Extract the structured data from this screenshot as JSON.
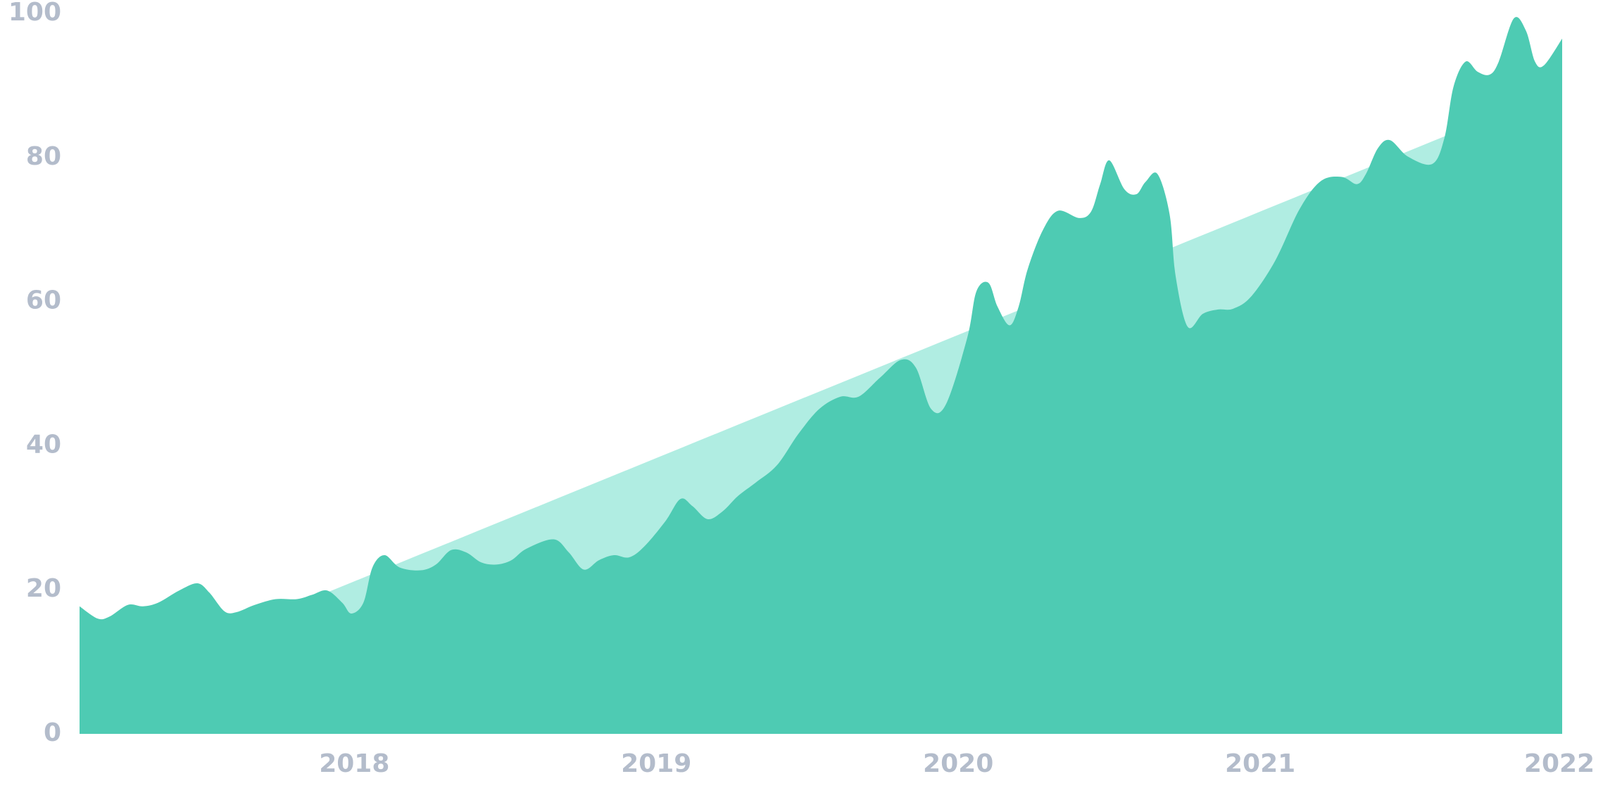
{
  "chart_data": {
    "type": "area",
    "xlim": [
      2017.09,
      2022
    ],
    "xticks": [
      2018,
      2019,
      2020,
      2021,
      2022
    ],
    "ylim": [
      0,
      100
    ],
    "yticks": [
      0,
      20,
      40,
      60,
      80,
      100
    ],
    "series": [
      {
        "color": "#b0ede2",
        "x": [
          2017.09,
          2022
        ],
        "values": [
          5.6,
          89.6
        ]
      },
      {
        "color": "#4ecbb3",
        "x": [
          2017.09,
          2017.15,
          2017.19,
          2017.25,
          2017.3,
          2017.35,
          2017.42,
          2017.48,
          2017.52,
          2017.57,
          2017.61,
          2017.67,
          2017.74,
          2017.81,
          2017.86,
          2017.91,
          2017.96,
          2017.99,
          2018.03,
          2018.06,
          2018.1,
          2018.15,
          2018.22,
          2018.27,
          2018.32,
          2018.37,
          2018.42,
          2018.47,
          2018.52,
          2018.57,
          2018.66,
          2018.71,
          2018.76,
          2018.81,
          2018.86,
          2018.91,
          2018.96,
          2019.03,
          2019.08,
          2019.12,
          2019.17,
          2019.22,
          2019.27,
          2019.33,
          2019.4,
          2019.47,
          2019.54,
          2019.61,
          2019.67,
          2019.74,
          2019.81,
          2019.86,
          2019.91,
          2019.96,
          2020.03,
          2020.06,
          2020.1,
          2020.13,
          2020.17,
          2020.2,
          2020.23,
          2020.28,
          2020.33,
          2020.4,
          2020.44,
          2020.47,
          2020.5,
          2020.55,
          2020.59,
          2020.62,
          2020.66,
          2020.7,
          2020.72,
          2020.76,
          2020.81,
          2020.86,
          2020.91,
          2020.97,
          2021.05,
          2021.13,
          2021.2,
          2021.27,
          2021.32,
          2021.35,
          2021.39,
          2021.43,
          2021.49,
          2021.57,
          2021.61,
          2021.64,
          2021.68,
          2021.72,
          2021.76,
          2021.79,
          2021.84,
          2021.88,
          2021.91,
          2021.94,
          2022
        ],
        "values": [
          17.7,
          16.0,
          16.3,
          17.9,
          17.7,
          18.2,
          19.9,
          20.9,
          19.6,
          17.0,
          16.9,
          17.9,
          18.7,
          18.7,
          19.3,
          19.9,
          18.2,
          16.7,
          18.2,
          23.1,
          24.8,
          23.1,
          22.7,
          23.5,
          25.5,
          25.2,
          23.8,
          23.5,
          24.1,
          25.7,
          27.0,
          25.2,
          22.8,
          24.1,
          24.8,
          24.5,
          26.0,
          29.5,
          32.6,
          31.6,
          29.8,
          30.9,
          33.0,
          34.9,
          37.3,
          41.6,
          45.1,
          46.8,
          46.8,
          49.4,
          51.9,
          50.8,
          45.1,
          45.8,
          55.0,
          61.4,
          62.6,
          59.3,
          56.7,
          59.3,
          64.5,
          69.9,
          72.6,
          71.6,
          72.5,
          76.3,
          79.6,
          75.6,
          74.9,
          76.6,
          77.7,
          72.1,
          63.5,
          56.5,
          58.3,
          58.9,
          59.0,
          60.7,
          65.7,
          72.8,
          76.7,
          77.3,
          76.3,
          77.7,
          81.3,
          82.4,
          80.1,
          79.1,
          82.7,
          89.8,
          93.3,
          91.9,
          91.5,
          93.3,
          99.3,
          97.6,
          93.3,
          92.8,
          96.5
        ]
      }
    ]
  }
}
